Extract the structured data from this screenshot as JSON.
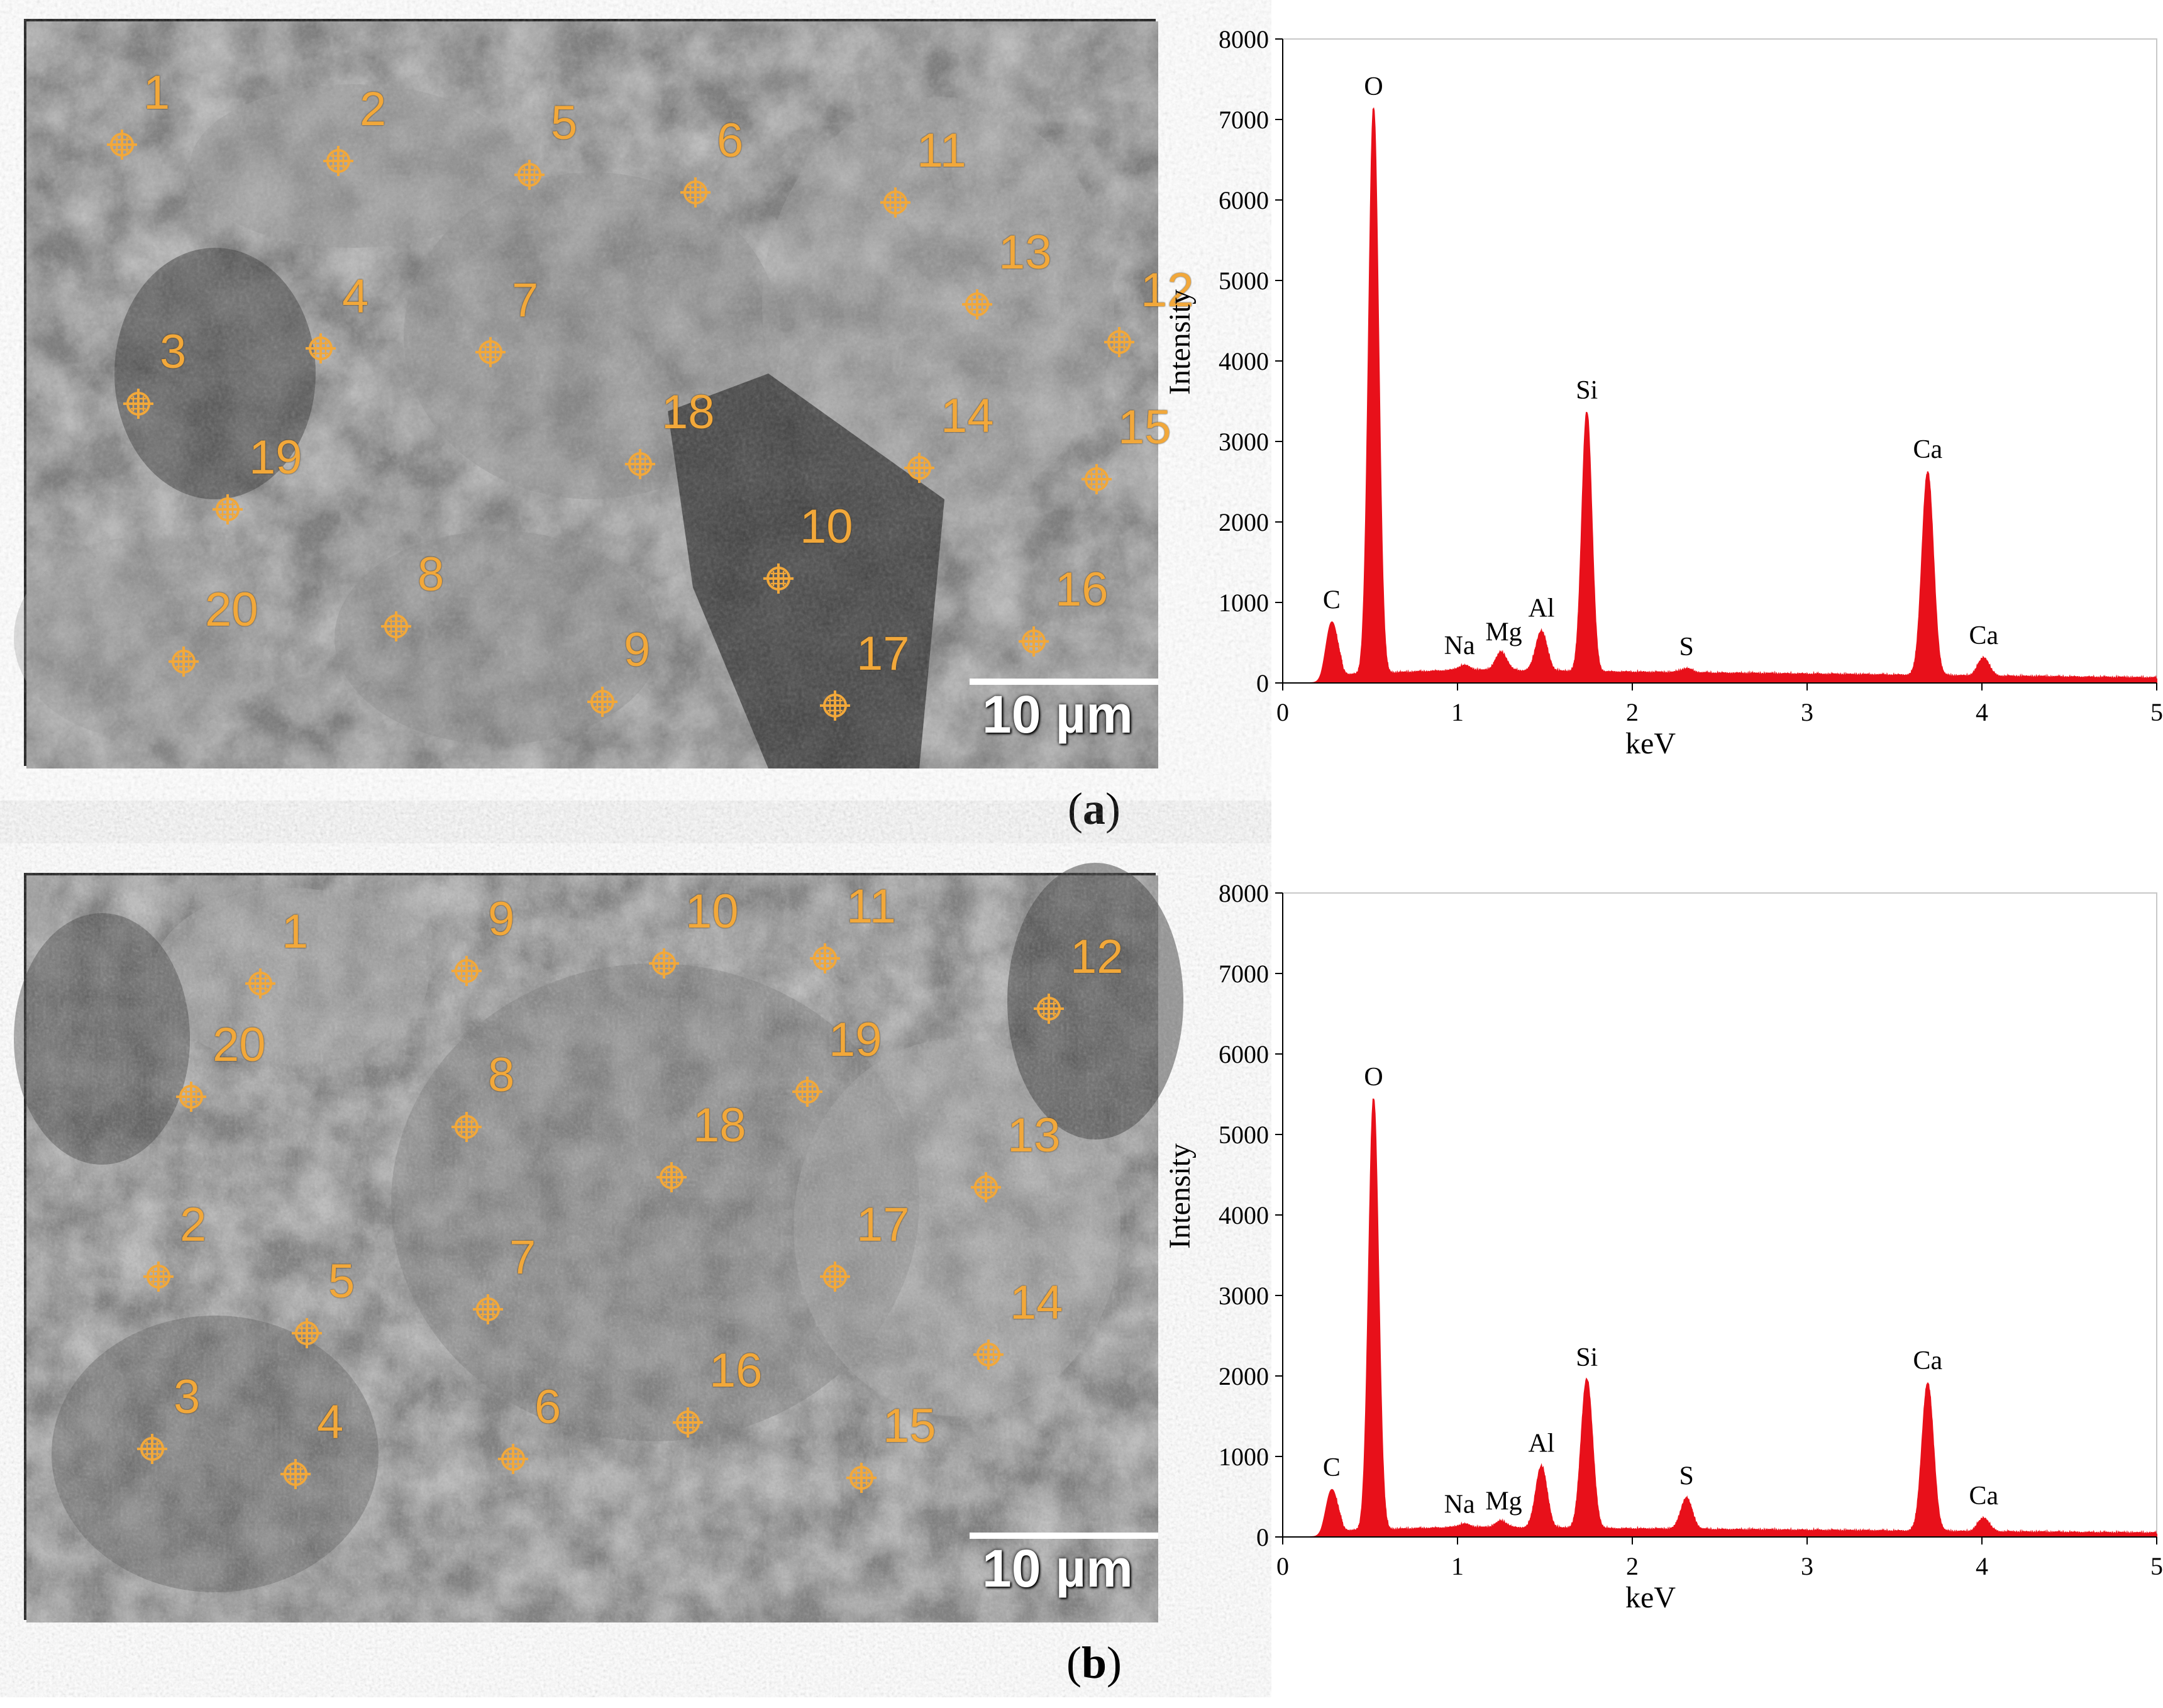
{
  "panels": [
    {
      "label": "a",
      "scale_label": "10 µm",
      "points": [
        {
          "n": "1",
          "x": 152,
          "y": 196
        },
        {
          "n": "2",
          "x": 496,
          "y": 222
        },
        {
          "n": "3",
          "x": 178,
          "y": 608
        },
        {
          "n": "4",
          "x": 468,
          "y": 520
        },
        {
          "n": "5",
          "x": 800,
          "y": 244
        },
        {
          "n": "6",
          "x": 1064,
          "y": 272
        },
        {
          "n": "7",
          "x": 738,
          "y": 526
        },
        {
          "n": "8",
          "x": 588,
          "y": 962
        },
        {
          "n": "9",
          "x": 916,
          "y": 1082
        },
        {
          "n": "10",
          "x": 1196,
          "y": 886
        },
        {
          "n": "11",
          "x": 1382,
          "y": 288
        },
        {
          "n": "12",
          "x": 1738,
          "y": 510
        },
        {
          "n": "13",
          "x": 1512,
          "y": 450
        },
        {
          "n": "14",
          "x": 1420,
          "y": 710
        },
        {
          "n": "15",
          "x": 1702,
          "y": 728
        },
        {
          "n": "16",
          "x": 1602,
          "y": 986
        },
        {
          "n": "17",
          "x": 1286,
          "y": 1088
        },
        {
          "n": "18",
          "x": 976,
          "y": 704
        },
        {
          "n": "19",
          "x": 320,
          "y": 776
        },
        {
          "n": "20",
          "x": 250,
          "y": 1018
        }
      ],
      "chart_data": {
        "type": "area",
        "title": "",
        "xlabel": "keV",
        "ylabel": "Intensity",
        "xlim": [
          0,
          5
        ],
        "ylim": [
          0,
          8000
        ],
        "xticks": [
          0,
          1,
          2,
          3,
          4,
          5
        ],
        "yticks": [
          0,
          1000,
          2000,
          3000,
          4000,
          5000,
          6000,
          7000,
          8000
        ],
        "color": "#e8101a",
        "baseline": 150,
        "peaks": [
          {
            "element": "C",
            "x": 0.28,
            "y": 800
          },
          {
            "element": "O",
            "x": 0.52,
            "y": 7150
          },
          {
            "element": "Na",
            "x": 1.04,
            "y": 180
          },
          {
            "element": "Mg",
            "x": 1.25,
            "y": 350
          },
          {
            "element": "Al",
            "x": 1.48,
            "y": 620
          },
          {
            "element": "Si",
            "x": 1.74,
            "y": 3350
          },
          {
            "element": "S",
            "x": 2.31,
            "y": 170
          },
          {
            "element": "Ca",
            "x": 3.69,
            "y": 2650
          },
          {
            "element": "Ca",
            "x": 4.01,
            "y": 350
          }
        ]
      }
    },
    {
      "label": "b",
      "scale_label": "10 µm",
      "points": [
        {
          "n": "1",
          "x": 372,
          "y": 172
        },
        {
          "n": "2",
          "x": 210,
          "y": 638
        },
        {
          "n": "3",
          "x": 200,
          "y": 912
        },
        {
          "n": "4",
          "x": 428,
          "y": 952
        },
        {
          "n": "5",
          "x": 446,
          "y": 728
        },
        {
          "n": "6",
          "x": 774,
          "y": 928
        },
        {
          "n": "7",
          "x": 734,
          "y": 690
        },
        {
          "n": "8",
          "x": 700,
          "y": 400
        },
        {
          "n": "9",
          "x": 700,
          "y": 152
        },
        {
          "n": "10",
          "x": 1014,
          "y": 140
        },
        {
          "n": "11",
          "x": 1270,
          "y": 132
        },
        {
          "n": "12",
          "x": 1626,
          "y": 212
        },
        {
          "n": "13",
          "x": 1526,
          "y": 496
        },
        {
          "n": "14",
          "x": 1530,
          "y": 762
        },
        {
          "n": "15",
          "x": 1328,
          "y": 958
        },
        {
          "n": "16",
          "x": 1052,
          "y": 870
        },
        {
          "n": "17",
          "x": 1286,
          "y": 638
        },
        {
          "n": "18",
          "x": 1026,
          "y": 480
        },
        {
          "n": "19",
          "x": 1242,
          "y": 344
        },
        {
          "n": "20",
          "x": 262,
          "y": 352
        }
      ],
      "chart_data": {
        "type": "area",
        "title": "",
        "xlabel": "keV",
        "ylabel": "Intensity",
        "xlim": [
          0,
          5
        ],
        "ylim": [
          0,
          8000
        ],
        "xticks": [
          0,
          1,
          2,
          3,
          4,
          5
        ],
        "yticks": [
          0,
          1000,
          2000,
          3000,
          4000,
          5000,
          6000,
          7000,
          8000
        ],
        "color": "#e8101a",
        "baseline": 110,
        "peaks": [
          {
            "element": "C",
            "x": 0.28,
            "y": 620
          },
          {
            "element": "O",
            "x": 0.52,
            "y": 5450
          },
          {
            "element": "Na",
            "x": 1.04,
            "y": 130
          },
          {
            "element": "Mg",
            "x": 1.25,
            "y": 170
          },
          {
            "element": "Al",
            "x": 1.48,
            "y": 860
          },
          {
            "element": "Si",
            "x": 1.74,
            "y": 1950
          },
          {
            "element": "S",
            "x": 2.31,
            "y": 480
          },
          {
            "element": "Ca",
            "x": 3.69,
            "y": 1930
          },
          {
            "element": "Ca",
            "x": 4.01,
            "y": 260
          }
        ]
      }
    }
  ]
}
